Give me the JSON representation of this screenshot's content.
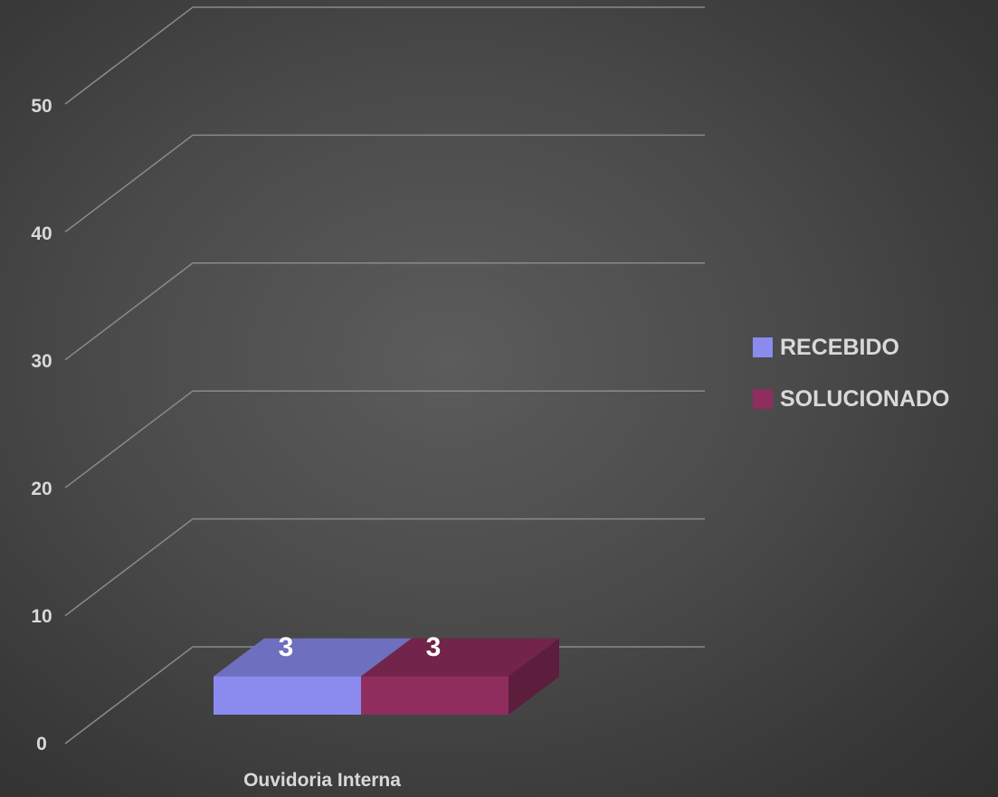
{
  "chart_data": {
    "type": "bar",
    "categories": [
      "Ouvidoria Interna"
    ],
    "series": [
      {
        "name": "RECEBIDO",
        "values": [
          3
        ],
        "color": "#8b8bef"
      },
      {
        "name": "SOLUCIONADO",
        "values": [
          3
        ],
        "color": "#8f2d5e"
      }
    ],
    "data_labels": [
      "3",
      "3"
    ],
    "yticks": [
      "0",
      "10",
      "20",
      "30",
      "40",
      "50"
    ],
    "ylim": [
      0,
      50
    ],
    "grid": true,
    "legend": "right",
    "style": "3d"
  }
}
